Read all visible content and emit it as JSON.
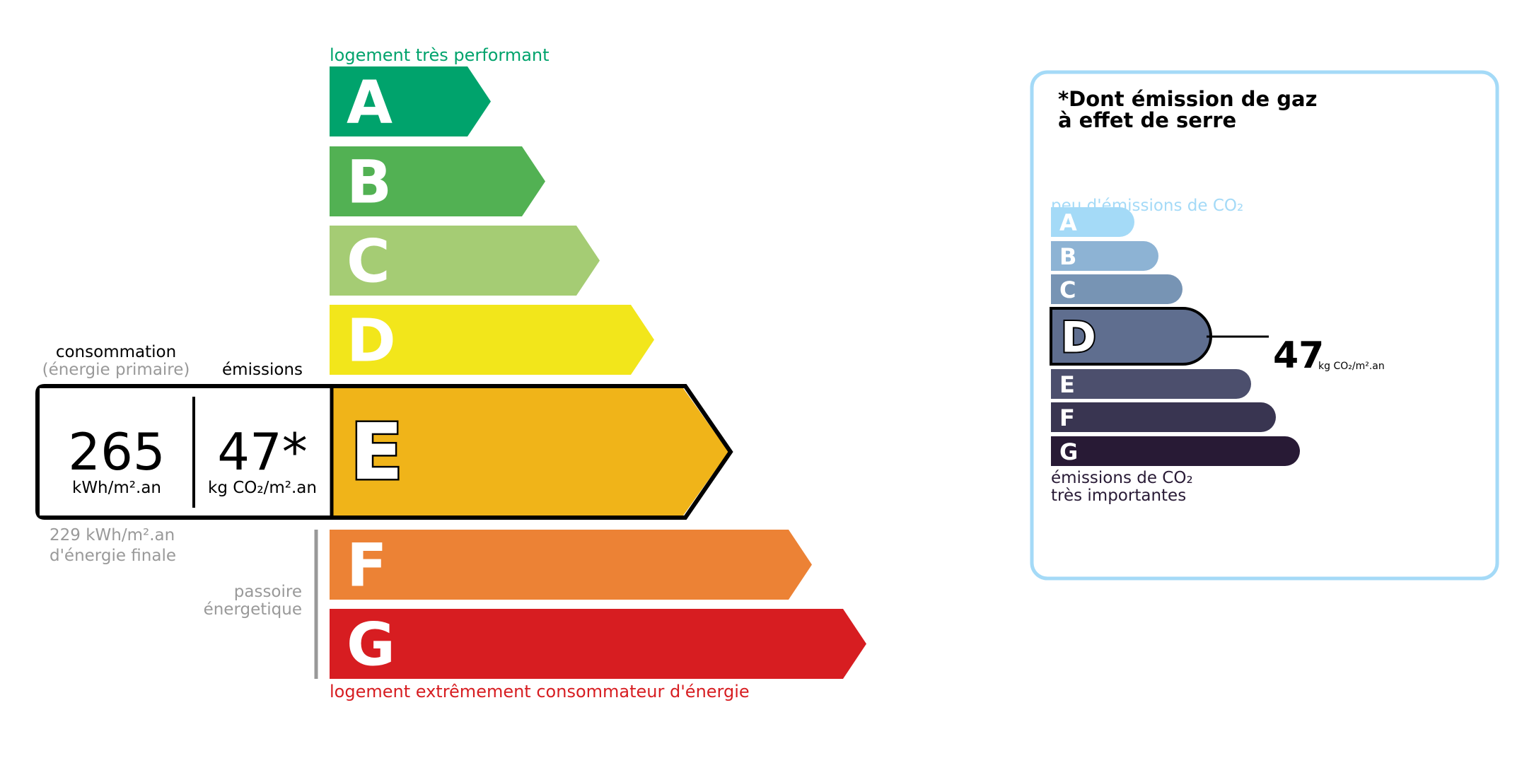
{
  "energy": {
    "top_label": "logement très performant",
    "bottom_label": "logement extrêmement consommateur d'énergie",
    "classes": [
      {
        "letter": "A",
        "color": "#00a36c"
      },
      {
        "letter": "B",
        "color": "#52b153"
      },
      {
        "letter": "C",
        "color": "#a5cc74"
      },
      {
        "letter": "D",
        "color": "#f2e61b"
      },
      {
        "letter": "E",
        "color": "#f0b419"
      },
      {
        "letter": "F",
        "color": "#ec8235"
      },
      {
        "letter": "G",
        "color": "#d71d21"
      }
    ],
    "current_class": "E",
    "consumption_label": "consommation",
    "consumption_sub": "(énergie primaire)",
    "emissions_label": "émissions",
    "consumption_value": "265",
    "consumption_unit": "kWh/m².an",
    "emissions_value": "47*",
    "emissions_unit": "kg CO₂/m².an",
    "final_energy_value": "229 kWh/m².an",
    "final_energy_label": "d'énergie finale",
    "passoire_line1": "passoire",
    "passoire_line2": "énergetique"
  },
  "ghg": {
    "title_line1": "*Dont émission de gaz",
    "title_line2": "à effet de serre",
    "top_label": "peu d'émissions de CO₂",
    "bottom_line1": "émissions de CO₂",
    "bottom_line2": "très importantes",
    "border_color": "#a4daf7",
    "classes": [
      {
        "letter": "A",
        "color": "#a4daf7"
      },
      {
        "letter": "B",
        "color": "#8db3d4"
      },
      {
        "letter": "C",
        "color": "#7794b4"
      },
      {
        "letter": "D",
        "color": "#5f6e8f"
      },
      {
        "letter": "E",
        "color": "#4c4f6d"
      },
      {
        "letter": "F",
        "color": "#393551"
      },
      {
        "letter": "G",
        "color": "#281a35"
      }
    ],
    "current_class": "D",
    "value": "47",
    "unit": "kg CO₂/m².an"
  }
}
